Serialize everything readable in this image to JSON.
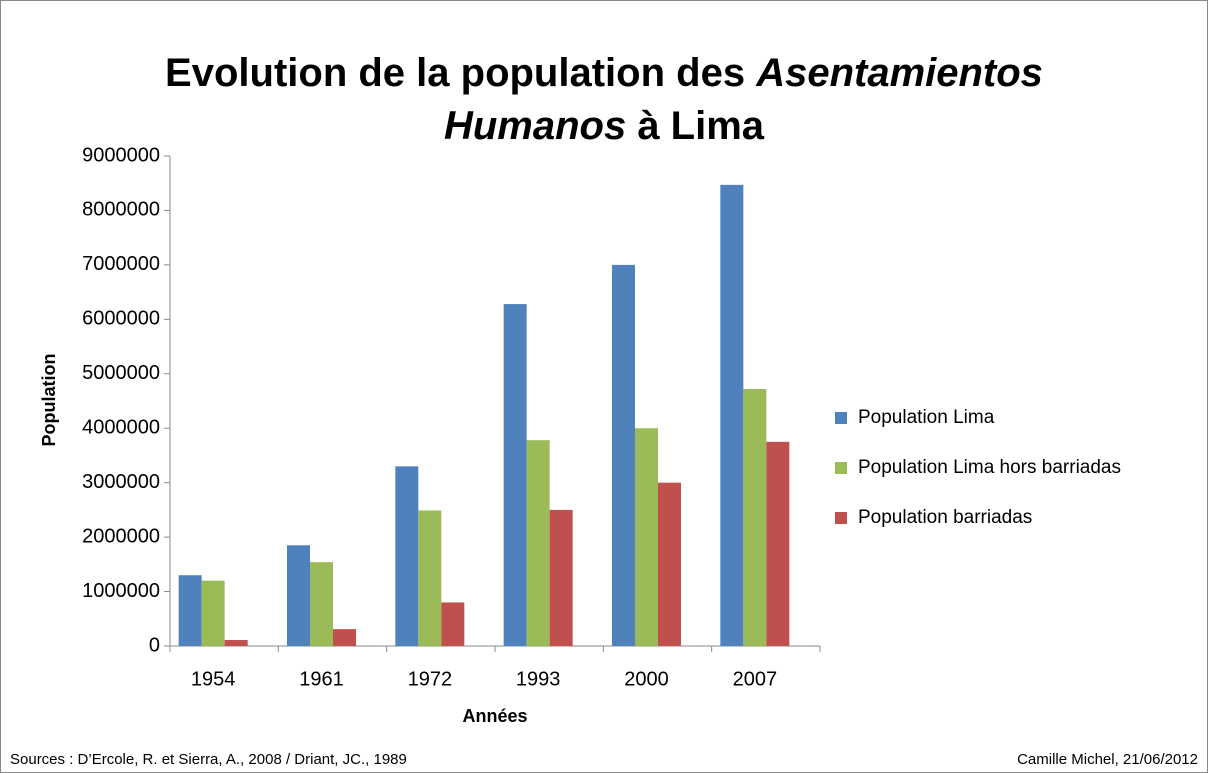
{
  "chart_data": {
    "type": "bar",
    "title": [
      [
        {
          "text": "Evolution de la population des ",
          "style": "normal"
        },
        {
          "text": "Asentamientos",
          "style": "italic"
        }
      ],
      [
        {
          "text": "Humanos",
          "style": "italic"
        },
        {
          "text": " à Lima",
          "style": "normal"
        }
      ]
    ],
    "x_label": "Années",
    "y_label": "Population",
    "categories": [
      "1954",
      "1961",
      "1972",
      "1993",
      "2000",
      "2007"
    ],
    "series": [
      {
        "name": "Population Lima",
        "color": "#4f81bd",
        "values": [
          1300000,
          1850000,
          3300000,
          6280000,
          7000000,
          8470000
        ]
      },
      {
        "name": "Population Lima hors barriadas",
        "color": "#9bbb59",
        "values": [
          1200000,
          1540000,
          2490000,
          3780000,
          4000000,
          4720000
        ]
      },
      {
        "name": "Population barriadas",
        "color": "#c0504d",
        "values": [
          110000,
          310000,
          800000,
          2500000,
          3000000,
          3750000
        ]
      }
    ],
    "ylim": [
      0,
      9000000
    ],
    "yticks": [
      0,
      1000000,
      2000000,
      3000000,
      4000000,
      5000000,
      6000000,
      7000000,
      8000000,
      9000000
    ],
    "grid": false,
    "legend": "right",
    "source": "Sources : D’Ercole, R. et Sierra, A., 2008 / Driant, JC., 1989",
    "author": "Camille Michel, 21/06/2012"
  }
}
